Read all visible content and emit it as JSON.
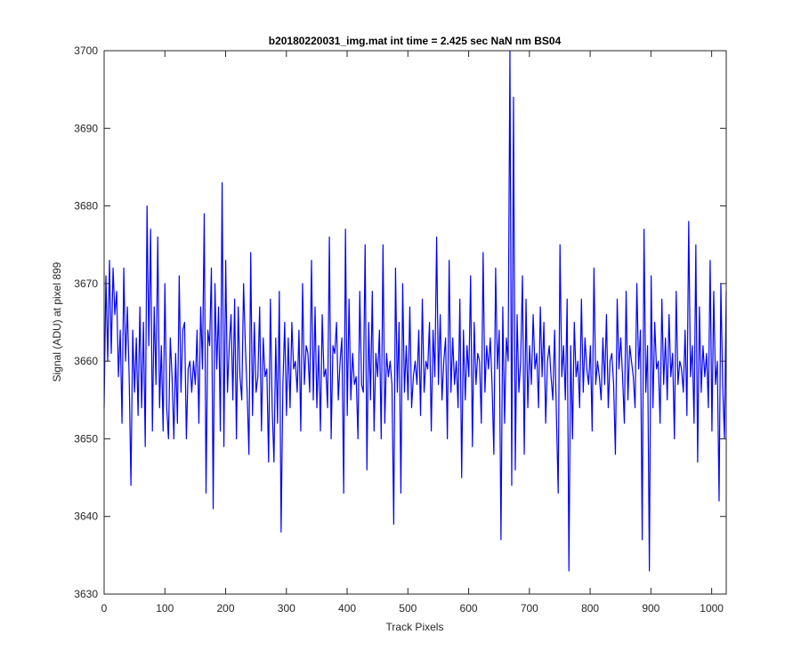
{
  "chart_data": {
    "type": "line",
    "title": "b20180220031_img.mat int time = 2.425 sec  NaN nm BS04",
    "xlabel": "Track Pixels",
    "ylabel": "Signal (ADU) at pixel 899",
    "xlim": [
      0,
      1024
    ],
    "ylim": [
      3630,
      3700
    ],
    "xticks": [
      0,
      100,
      200,
      300,
      400,
      500,
      600,
      700,
      800,
      900,
      1000
    ],
    "yticks": [
      3630,
      3640,
      3650,
      3660,
      3670,
      3680,
      3690,
      3700
    ],
    "grid": false,
    "line_color": "#0000ff",
    "series": [
      {
        "values": [
          3654,
          3671,
          3660,
          3673,
          3661,
          3672,
          3666,
          3669,
          3658,
          3664,
          3652,
          3672,
          3660,
          3667,
          3658,
          3644,
          3664,
          3656,
          3663,
          3653,
          3667,
          3654,
          3665,
          3649,
          3680,
          3662,
          3677,
          3651,
          3667,
          3657,
          3676,
          3654,
          3662,
          3651,
          3670,
          3654,
          3650,
          3663,
          3658,
          3650,
          3661,
          3652,
          3671,
          3656,
          3664,
          3665,
          3650,
          3659,
          3660,
          3656,
          3660,
          3657,
          3664,
          3652,
          3667,
          3659,
          3679,
          3643,
          3664,
          3662,
          3672,
          3641,
          3670,
          3659,
          3667,
          3651,
          3683,
          3649,
          3673,
          3656,
          3662,
          3666,
          3655,
          3668,
          3650,
          3667,
          3658,
          3655,
          3670,
          3662,
          3656,
          3648,
          3674,
          3653,
          3665,
          3656,
          3658,
          3667,
          3651,
          3663,
          3658,
          3659,
          3647,
          3668,
          3654,
          3647,
          3663,
          3652,
          3669,
          3638,
          3657,
          3665,
          3653,
          3663,
          3654,
          3665,
          3659,
          3660,
          3656,
          3664,
          3651,
          3670,
          3657,
          3662,
          3661,
          3656,
          3673,
          3655,
          3667,
          3654,
          3662,
          3651,
          3666,
          3658,
          3659,
          3654,
          3676,
          3650,
          3662,
          3661,
          3665,
          3655,
          3660,
          3663,
          3643,
          3677,
          3653,
          3668,
          3655,
          3661,
          3657,
          3658,
          3650,
          3669,
          3657,
          3656,
          3675,
          3646,
          3665,
          3655,
          3669,
          3651,
          3661,
          3658,
          3664,
          3650,
          3675,
          3652,
          3661,
          3658,
          3660,
          3657,
          3639,
          3672,
          3656,
          3665,
          3643,
          3670,
          3656,
          3662,
          3655,
          3667,
          3654,
          3658,
          3660,
          3657,
          3664,
          3653,
          3668,
          3656,
          3660,
          3659,
          3665,
          3651,
          3664,
          3658,
          3676,
          3657,
          3666,
          3655,
          3660,
          3663,
          3650,
          3673,
          3656,
          3663,
          3657,
          3660,
          3654,
          3668,
          3645,
          3664,
          3655,
          3662,
          3658,
          3671,
          3649,
          3665,
          3657,
          3661,
          3660,
          3652,
          3674,
          3656,
          3662,
          3659,
          3663,
          3657,
          3648,
          3672,
          3659,
          3664,
          3637,
          3667,
          3652,
          3663,
          3660,
          3700,
          3644,
          3694,
          3646,
          3666,
          3656,
          3660,
          3671,
          3648,
          3668,
          3654,
          3662,
          3657,
          3666,
          3659,
          3661,
          3654,
          3667,
          3658,
          3665,
          3652,
          3660,
          3662,
          3658,
          3655,
          3664,
          3653,
          3643,
          3675,
          3658,
          3662,
          3655,
          3668,
          3633,
          3662,
          3650,
          3665,
          3658,
          3660,
          3654,
          3668,
          3656,
          3663,
          3659,
          3657,
          3662,
          3651,
          3672,
          3657,
          3660,
          3658,
          3655,
          3663,
          3657,
          3666,
          3654,
          3660,
          3661,
          3657,
          3648,
          3668,
          3659,
          3663,
          3658,
          3652,
          3669,
          3655,
          3662,
          3660,
          3658,
          3654,
          3670,
          3659,
          3664,
          3637,
          3677,
          3656,
          3662,
          3633,
          3671,
          3654,
          3665,
          3659,
          3660,
          3652,
          3668,
          3657,
          3663,
          3655,
          3666,
          3658,
          3661,
          3650,
          3669,
          3657,
          3660,
          3659,
          3656,
          3664,
          3653,
          3678,
          3658,
          3662,
          3652,
          3675,
          3647,
          3667,
          3656,
          3662,
          3658,
          3661,
          3654,
          3673,
          3651,
          3669,
          3657,
          3660,
          3642,
          3670,
          3657,
          3650,
          3669
        ]
      }
    ]
  }
}
